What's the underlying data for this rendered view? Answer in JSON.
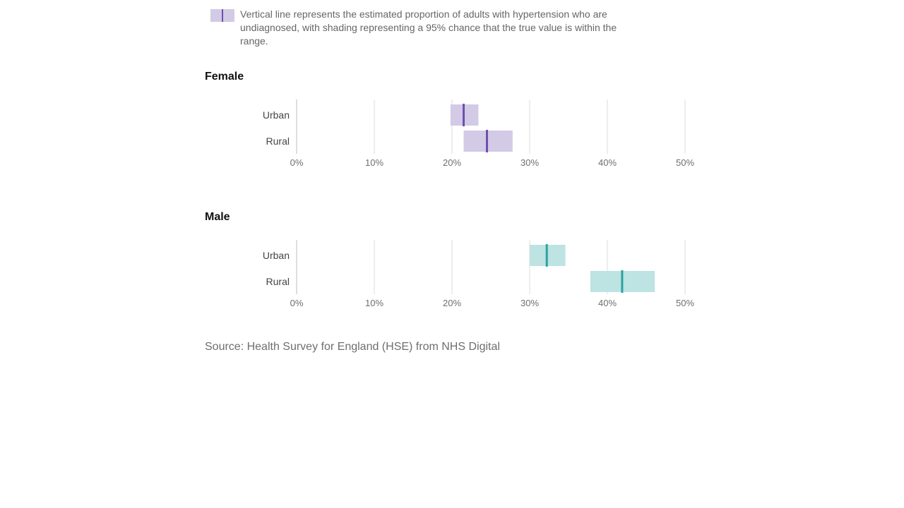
{
  "legend": {
    "text": "Vertical line represents the estimated proportion of adults with hypertension who are undiagnosed, with shading representing a 95% chance that the true value is within the range.",
    "color": "#6f4fb0",
    "fill": "#d3cae5"
  },
  "source": "Source: Health Survey for England (HSE) from NHS Digital",
  "chart_data": [
    {
      "type": "interval",
      "title": "Female",
      "categories": [
        "Urban",
        "Rural"
      ],
      "values": [
        21.5,
        24.5
      ],
      "lower": [
        19.8,
        21.5
      ],
      "upper": [
        23.4,
        27.8
      ],
      "xlim": [
        0,
        50
      ],
      "xticks": [
        "0%",
        "10%",
        "20%",
        "30%",
        "40%",
        "50%"
      ],
      "grid": true,
      "line_color": "#6f4fb0",
      "fill_color": "#d3cae5"
    },
    {
      "type": "interval",
      "title": "Male",
      "categories": [
        "Urban",
        "Rural"
      ],
      "values": [
        32.2,
        41.9
      ],
      "lower": [
        30.0,
        37.8
      ],
      "upper": [
        34.6,
        46.1
      ],
      "xlim": [
        0,
        50
      ],
      "xticks": [
        "0%",
        "10%",
        "20%",
        "30%",
        "40%",
        "50%"
      ],
      "grid": true,
      "line_color": "#2aa3a0",
      "fill_color": "#bde3e2"
    }
  ]
}
